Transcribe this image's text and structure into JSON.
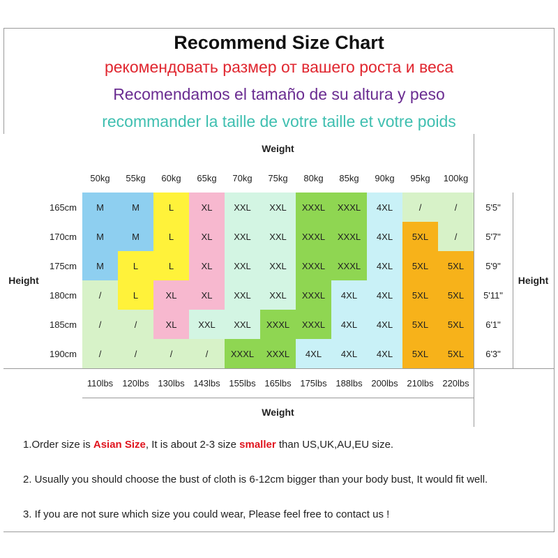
{
  "header": {
    "title": "Recommend Size Chart",
    "lines": [
      {
        "text": "рекомендовать размер от вашего роста и веса",
        "color": "#e0262f"
      },
      {
        "text": "Recomendamos el tamaño de su altura y peso",
        "color": "#6a2c91"
      },
      {
        "text": "recommander la taille de votre taille et votre poids",
        "color": "#3fbfb0"
      }
    ]
  },
  "table": {
    "weight_label": "Weight",
    "height_label": "Height",
    "kg": [
      "50kg",
      "55kg",
      "60kg",
      "65kg",
      "70kg",
      "75kg",
      "80kg",
      "85kg",
      "90kg",
      "95kg",
      "100kg"
    ],
    "lbs": [
      "110lbs",
      "120lbs",
      "130lbs",
      "143lbs",
      "155lbs",
      "165lbs",
      "175lbs",
      "188lbs",
      "200lbs",
      "210lbs",
      "220lbs"
    ],
    "rows": [
      {
        "cm": "165cm",
        "ft": "5'5\"",
        "sizes": [
          "M",
          "M",
          "L",
          "XL",
          "XXL",
          "XXL",
          "XXXL",
          "XXXL",
          "4XL",
          "/",
          "/"
        ]
      },
      {
        "cm": "170cm",
        "ft": "5'7\"",
        "sizes": [
          "M",
          "M",
          "L",
          "XL",
          "XXL",
          "XXL",
          "XXXL",
          "XXXL",
          "4XL",
          "5XL",
          "/"
        ]
      },
      {
        "cm": "175cm",
        "ft": "5'9\"",
        "sizes": [
          "M",
          "L",
          "L",
          "XL",
          "XXL",
          "XXL",
          "XXXL",
          "XXXL",
          "4XL",
          "5XL",
          "5XL"
        ]
      },
      {
        "cm": "180cm",
        "ft": "5'11\"",
        "sizes": [
          "/",
          "L",
          "XL",
          "XL",
          "XXL",
          "XXL",
          "XXXL",
          "4XL",
          "4XL",
          "5XL",
          "5XL"
        ]
      },
      {
        "cm": "185cm",
        "ft": "6'1\"",
        "sizes": [
          "/",
          "/",
          "XL",
          "XXL",
          "XXL",
          "XXXL",
          "XXXL",
          "4XL",
          "4XL",
          "5XL",
          "5XL"
        ]
      },
      {
        "cm": "190cm",
        "ft": "6'3\"",
        "sizes": [
          "/",
          "/",
          "/",
          "/",
          "XXXL",
          "XXXL",
          "4XL",
          "4XL",
          "4XL",
          "5XL",
          "5XL"
        ]
      }
    ],
    "size_colors": {
      "M": "#8ecff0",
      "L": "#fff23a",
      "XL": "#f7b8cf",
      "XXL": "#d3f5e3",
      "XXXL": "#8fd652",
      "4XL": "#c9f1f7",
      "5XL": "#f7b21a",
      "/": "#d7f2c8"
    }
  },
  "notes": [
    [
      {
        "text": "1.Order size is ",
        "emphasis": false
      },
      {
        "text": "Asian Size",
        "emphasis": true
      },
      {
        "text": ", It is about 2-3 size ",
        "emphasis": false
      },
      {
        "text": "smaller",
        "emphasis": true
      },
      {
        "text": " than US,UK,AU,EU size.",
        "emphasis": false
      }
    ],
    [
      {
        "text": "2. Usually you should choose the bust of cloth is 6-12cm bigger than your body bust, It would fit well.",
        "emphasis": false
      }
    ],
    [
      {
        "text": "3. If you are not sure which size you could wear, Please feel free to contact us !",
        "emphasis": false
      }
    ]
  ]
}
